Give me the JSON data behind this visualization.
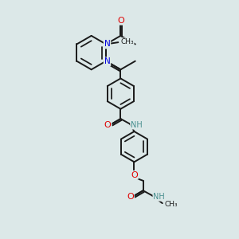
{
  "bg_color": "#dce8e8",
  "bond_color": "#1a1a1a",
  "bond_width": 1.4,
  "atom_colors": {
    "O": "#e00000",
    "N": "#0000dd",
    "NH": "#4a9090",
    "C": "#1a1a1a"
  },
  "font_size": 7.0,
  "figsize": [
    3.0,
    3.0
  ],
  "dpi": 100
}
